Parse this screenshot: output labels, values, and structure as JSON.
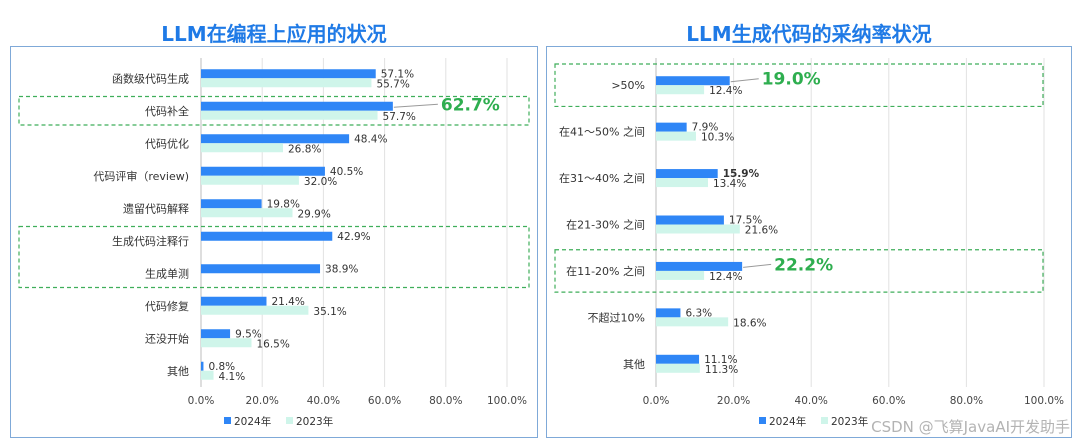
{
  "chart_data": [
    {
      "type": "bar",
      "orientation": "horizontal",
      "title": "LLM在编程上应用的状况",
      "categories": [
        "函数级代码生成",
        "代码补全",
        "代码优化",
        "代码评审（review)",
        "遗留代码解释",
        "生成代码注释行",
        "生成单测",
        "代码修复",
        "还没开始",
        "其他"
      ],
      "series": [
        {
          "name": "2024年",
          "color": "#2f86f6",
          "values": [
            57.1,
            62.7,
            48.4,
            40.5,
            19.8,
            42.9,
            38.9,
            21.4,
            9.5,
            0.8
          ],
          "labels": [
            "57.1%",
            "",
            "48.4%",
            "40.5%",
            "19.8%",
            "42.9%",
            "38.9%",
            "21.4%",
            "9.5%",
            "0.8%"
          ]
        },
        {
          "name": "2023年",
          "color": "#cff5ea",
          "values": [
            55.7,
            57.7,
            26.8,
            32.0,
            29.9,
            null,
            null,
            35.1,
            16.5,
            4.1
          ],
          "labels": [
            "55.7%",
            "57.7%",
            "26.8%",
            "32.0%",
            "29.9%",
            "",
            "",
            "35.1%",
            "16.5%",
            "4.1%"
          ]
        }
      ],
      "xlim": [
        0,
        100
      ],
      "ticks": [
        "0.0%",
        "20.0%",
        "40.0%",
        "60.0%",
        "80.0%",
        "100.0%"
      ],
      "grid": true,
      "legend": "bottom",
      "callouts": [
        {
          "category": "代码补全",
          "text": "62.7%",
          "color": "#2eae4f"
        }
      ],
      "highlight_boxes": [
        [
          "代码补全"
        ],
        [
          "生成代码注释行",
          "生成单测"
        ]
      ]
    },
    {
      "type": "bar",
      "orientation": "horizontal",
      "title": "LLM生成代码的采纳率状况",
      "categories": [
        ">50%",
        "在41～50% 之间",
        "在31～40% 之间",
        "在21-30% 之间",
        "在11-20% 之间",
        "不超过10%",
        "其他"
      ],
      "series": [
        {
          "name": "2024年",
          "color": "#2f86f6",
          "values": [
            19.0,
            7.9,
            15.9,
            17.5,
            22.2,
            6.3,
            11.1
          ],
          "labels": [
            "",
            "7.9%",
            "15.9%",
            "17.5%",
            "",
            "6.3%",
            "11.1%"
          ]
        },
        {
          "name": "2023年",
          "color": "#cff5ea",
          "values": [
            12.4,
            10.3,
            13.4,
            21.6,
            12.4,
            18.6,
            11.3
          ],
          "labels": [
            "12.4%",
            "10.3%",
            "13.4%",
            "21.6%",
            "12.4%",
            "18.6%",
            "11.3%"
          ]
        }
      ],
      "xlim": [
        0,
        100
      ],
      "ticks": [
        "0.0%",
        "20.0%",
        "40.0%",
        "60.0%",
        "80.0%",
        "100.0%"
      ],
      "grid": true,
      "legend": "bottom",
      "callouts": [
        {
          "category": ">50%",
          "text": "19.0%",
          "color": "#2eae4f"
        },
        {
          "category": "在11-20% 之间",
          "text": "22.2%",
          "color": "#2eae4f"
        }
      ],
      "highlight_boxes": [
        [
          ">50%"
        ],
        [
          "在11-20% 之间"
        ]
      ]
    }
  ],
  "watermark": "CSDN @飞算JavaAI开发助手"
}
